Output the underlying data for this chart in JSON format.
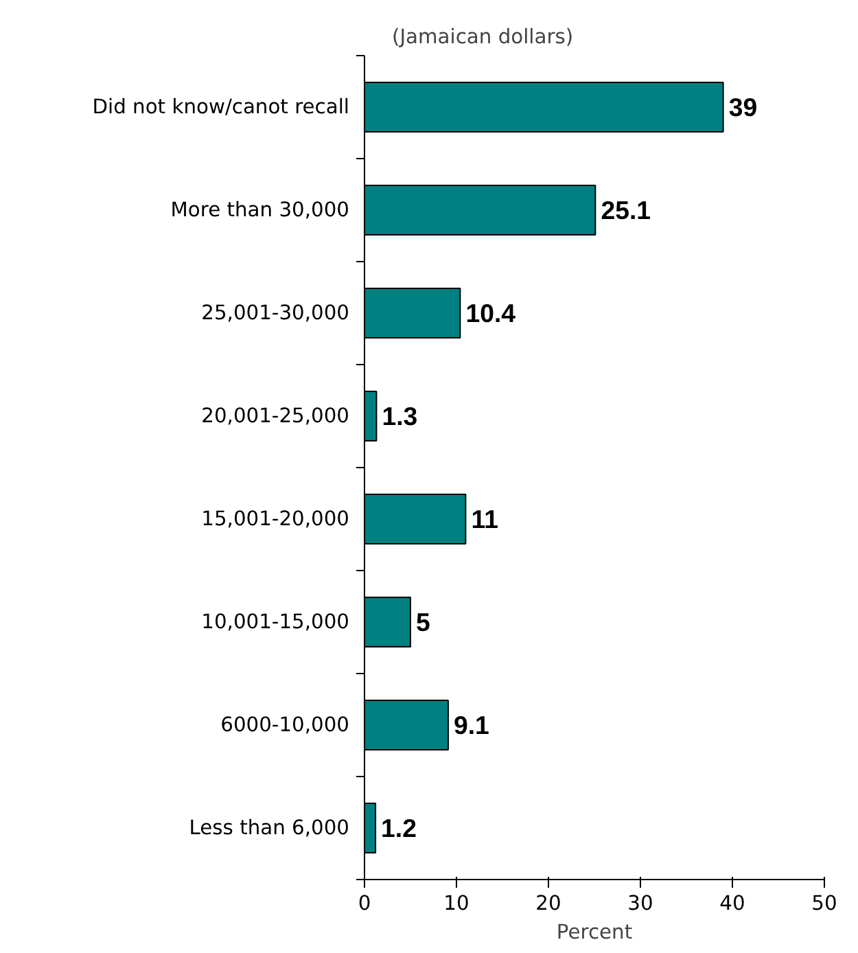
{
  "chart_data": {
    "type": "bar",
    "orientation": "horizontal",
    "title": "(Jamaican dollars)",
    "xlabel": "Percent",
    "categories": [
      "Did not know/canot recall",
      "More than 30,000",
      "25,001-30,000",
      "20,001-25,000",
      "15,001-20,000",
      "10,001-15,000",
      "6000-10,000",
      "Less than 6,000"
    ],
    "values": [
      39,
      25.1,
      10.4,
      1.3,
      11,
      5,
      9.1,
      1.2
    ],
    "color": "#008080",
    "xlim": [
      0,
      50
    ],
    "xticks": [
      0,
      10,
      20,
      30,
      40,
      50
    ],
    "data_labels": true,
    "grid": false
  }
}
